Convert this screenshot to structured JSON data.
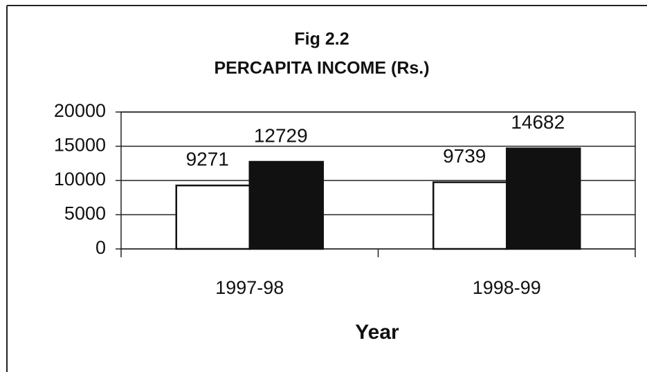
{
  "chart_data": {
    "type": "bar",
    "title": "Fig 2.2",
    "subtitle": "PERCAPITA INCOME (Rs.)",
    "x_label": "Year",
    "categories": [
      "1997-98",
      "1998-99"
    ],
    "series": [
      {
        "color": "#ffffff",
        "values": [
          9271,
          9739
        ]
      },
      {
        "color": "#111111",
        "values": [
          12729,
          14682
        ]
      }
    ],
    "ylim": [
      0,
      20000
    ],
    "yticks": [
      0,
      5000,
      10000,
      15000,
      20000
    ],
    "grid": true
  }
}
